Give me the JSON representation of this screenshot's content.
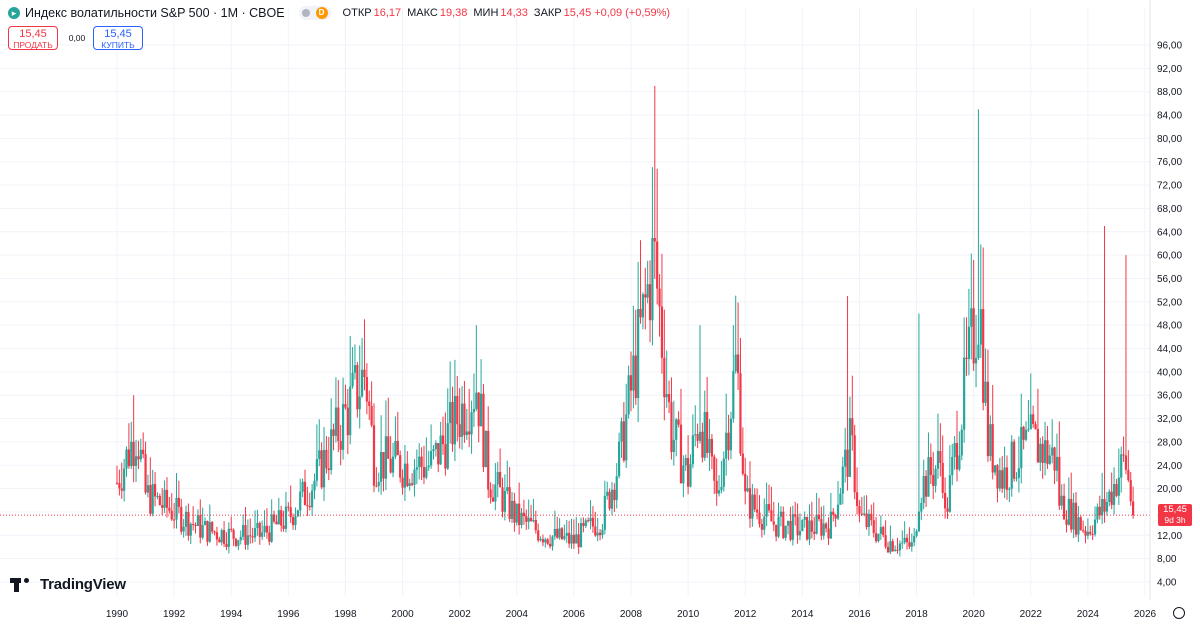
{
  "header": {
    "symbol_title": "Индекс волатильности S&P 500 · 1М · CBOE",
    "ohlc": [
      {
        "label": "ОТКР",
        "value": "16,17"
      },
      {
        "label": "МАКС",
        "value": "19,38"
      },
      {
        "label": "МИН",
        "value": "14,33"
      },
      {
        "label": "ЗАКР",
        "value": "15,45 +0,09 (+0,59%)"
      }
    ],
    "pill_letter": "D"
  },
  "trade": {
    "sell_price": "15,45",
    "sell_label": "ПРОДАТЬ",
    "spread": "0,00",
    "buy_price": "15,45",
    "buy_label": "КУПИТЬ"
  },
  "price_tag": {
    "price": "15,45",
    "countdown": "9d 3h"
  },
  "logo": {
    "text": "TradingView"
  },
  "colors": {
    "up": "#26a69a",
    "down": "#f23645",
    "grid": "#f0f3fa",
    "axis_text": "#131722"
  },
  "chart_data": {
    "type": "candlestick",
    "timeframe": "1M",
    "ylim": [
      2,
      97
    ],
    "xlim": [
      1989.9,
      2026.3
    ],
    "y_ticks": [
      "4,00",
      "8,00",
      "12,00",
      "16,00",
      "20,00",
      "24,00",
      "28,00",
      "32,00",
      "36,00",
      "40,00",
      "44,00",
      "48,00",
      "52,00",
      "56,00",
      "60,00",
      "64,00",
      "68,00",
      "72,00",
      "76,00",
      "80,00",
      "84,00",
      "88,00",
      "92,00",
      "96,00"
    ],
    "x_ticks": [
      "1990",
      "1992",
      "1994",
      "1996",
      "1998",
      "2000",
      "2002",
      "2004",
      "2006",
      "2008",
      "2010",
      "2012",
      "2014",
      "2016",
      "2018",
      "2020",
      "2022",
      "2024",
      "2026"
    ],
    "last_price": 15.45,
    "yearly_close_path": [
      [
        1990,
        21
      ],
      [
        1990.7,
        30
      ],
      [
        1991,
        19
      ],
      [
        1992,
        16
      ],
      [
        1993,
        13
      ],
      [
        1994,
        12
      ],
      [
        1995,
        12
      ],
      [
        1996,
        15
      ],
      [
        1997,
        22
      ],
      [
        1998.7,
        40
      ],
      [
        1999,
        25
      ],
      [
        2000,
        24
      ],
      [
        2001,
        24
      ],
      [
        2002.6,
        38
      ],
      [
        2003,
        22
      ],
      [
        2004,
        15
      ],
      [
        2005,
        12
      ],
      [
        2006,
        11
      ],
      [
        2007,
        15
      ],
      [
        2007.6,
        25
      ],
      [
        2008.8,
        60
      ],
      [
        2009.4,
        30
      ],
      [
        2010,
        22
      ],
      [
        2010.4,
        33
      ],
      [
        2011,
        18
      ],
      [
        2011.7,
        42
      ],
      [
        2012,
        18
      ],
      [
        2013,
        14
      ],
      [
        2014,
        13
      ],
      [
        2015,
        14
      ],
      [
        2015.7,
        28
      ],
      [
        2016,
        15
      ],
      [
        2017,
        11
      ],
      [
        2017.9,
        10
      ],
      [
        2018.1,
        20
      ],
      [
        2018.9,
        25
      ],
      [
        2019,
        15
      ],
      [
        2020.2,
        53
      ],
      [
        2020.5,
        28
      ],
      [
        2021,
        22
      ],
      [
        2022,
        28
      ],
      [
        2022.9,
        25
      ],
      [
        2023,
        18
      ],
      [
        2023.9,
        13
      ],
      [
        2024,
        13
      ],
      [
        2024.6,
        17
      ],
      [
        2025.3,
        25
      ],
      [
        2025.6,
        15.45
      ]
    ],
    "spikes": [
      {
        "x": 1990.6,
        "high": 36
      },
      {
        "x": 1998.7,
        "high": 49
      },
      {
        "x": 2002.6,
        "high": 48
      },
      {
        "x": 2008.8,
        "high": 89
      },
      {
        "x": 2010.4,
        "high": 48
      },
      {
        "x": 2011.6,
        "high": 48
      },
      {
        "x": 2015.6,
        "high": 53
      },
      {
        "x": 2018.1,
        "high": 50
      },
      {
        "x": 2020.2,
        "high": 85
      },
      {
        "x": 2024.6,
        "high": 65
      },
      {
        "x": 2025.3,
        "high": 60
      }
    ]
  }
}
